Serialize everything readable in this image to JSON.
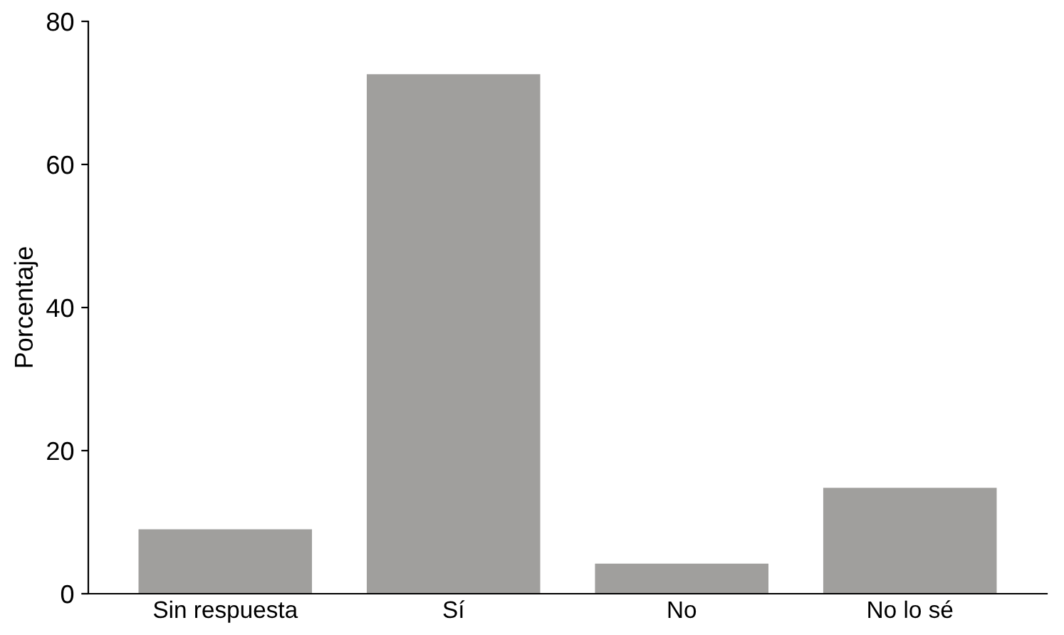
{
  "chart_data": {
    "type": "bar",
    "ylabel": "Porcentaje",
    "categories": [
      "Sin respuesta",
      "Sí",
      "No",
      "No lo sé"
    ],
    "values": [
      9.0,
      72.6,
      4.2,
      14.8
    ],
    "color": "#a09f9d",
    "ylim": [
      0,
      80
    ],
    "yticks": [
      0,
      20,
      40,
      60,
      80
    ],
    "grid": false,
    "legend": false
  }
}
